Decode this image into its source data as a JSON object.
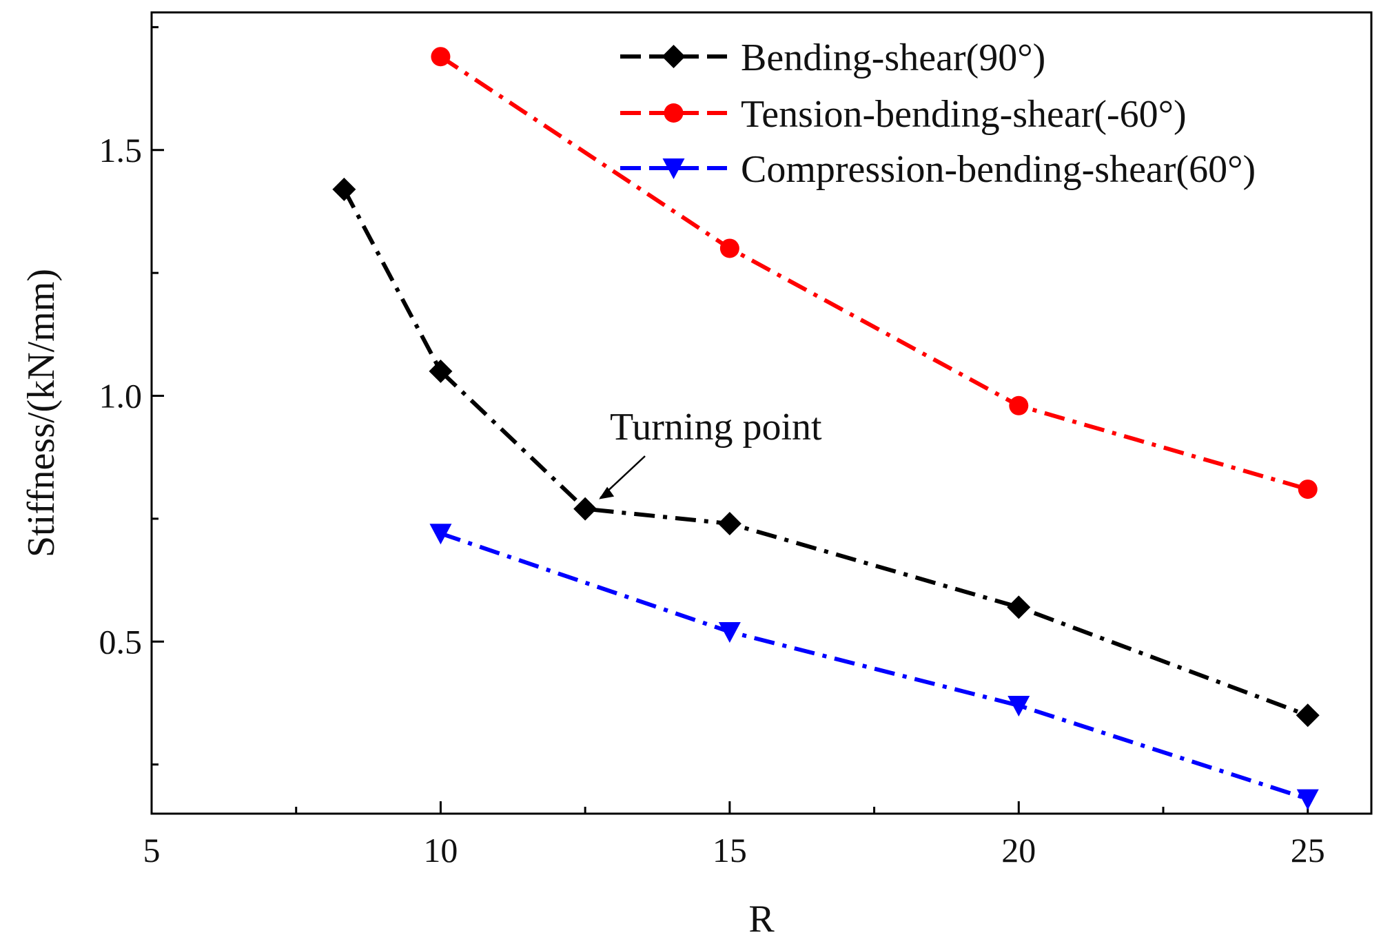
{
  "chart_data": {
    "type": "line",
    "title": "",
    "xlabel": "R",
    "ylabel": "Stiffness/(kN/mm)",
    "xlim": [
      5,
      26.1
    ],
    "ylim": [
      0.15,
      1.78
    ],
    "x_ticks": [
      5,
      10,
      15,
      20,
      25
    ],
    "x_tick_labels": [
      "5",
      "10",
      "15",
      "20",
      "25"
    ],
    "x_minor_ticks": [
      7.5,
      12.5,
      17.5,
      22.5
    ],
    "y_ticks": [
      0.5,
      1.0,
      1.5
    ],
    "y_tick_labels": [
      "0.5",
      "1.0",
      "1.5"
    ],
    "y_minor_ticks": [
      0.25,
      0.75,
      1.25,
      1.75
    ],
    "grid": false,
    "legend_position": "top-right",
    "series": [
      {
        "name": "Bending-shear(90°)",
        "color": "#000000",
        "marker": "diamond",
        "x": [
          8.33,
          10,
          12.5,
          15,
          20,
          25
        ],
        "y": [
          1.42,
          1.05,
          0.77,
          0.74,
          0.57,
          0.35
        ]
      },
      {
        "name": "Tension-bending-shear(-60°)",
        "color": "#ff0000",
        "marker": "circle",
        "x": [
          10,
          15,
          20,
          25
        ],
        "y": [
          1.69,
          1.3,
          0.98,
          0.81
        ]
      },
      {
        "name": "Compression-bending-shear(60°)",
        "color": "#0000ff",
        "marker": "triangle-down",
        "x": [
          10,
          15,
          20,
          25
        ],
        "y": [
          0.72,
          0.52,
          0.37,
          0.18
        ]
      }
    ],
    "annotations": [
      {
        "text": "Turning point",
        "target_x": 12.5,
        "target_y": 0.77
      }
    ]
  }
}
